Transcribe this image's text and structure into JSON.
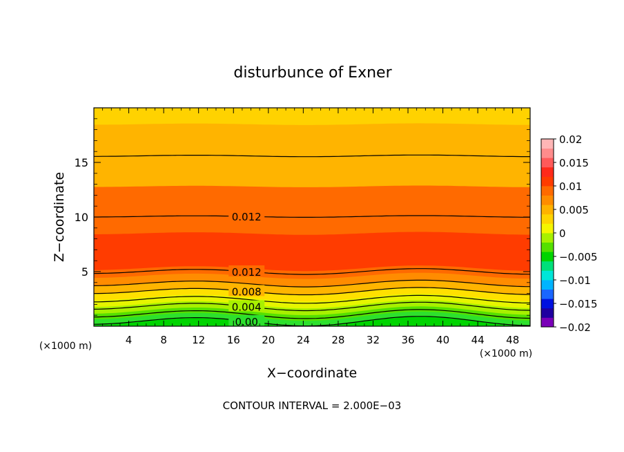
{
  "chart_data": {
    "type": "heatmap",
    "title": "disturbunce of Exner",
    "xlabel": "X−coordinate",
    "ylabel": "Z−coordinate",
    "x_unit": "(×1000 m)",
    "z_unit": "(×1000 m)",
    "xlim": [
      0,
      50
    ],
    "ylim": [
      0,
      20
    ],
    "xticks": [
      "4",
      "8",
      "12",
      "16",
      "20",
      "24",
      "28",
      "32",
      "36",
      "40",
      "44",
      "48"
    ],
    "yticks": [
      "5",
      "10",
      "15"
    ],
    "footer": "CONTOUR INTERVAL = 2.000E−03",
    "colorbar": {
      "range": [
        -0.02,
        0.02
      ],
      "tick_labels": [
        "0.02",
        "0.015",
        "0.01",
        "0.005",
        "0",
        "−0.005",
        "−0.01",
        "−0.015",
        "−0.02"
      ],
      "colors": [
        "#7a00b8",
        "#1f00a0",
        "#0011e0",
        "#1a66ff",
        "#00b4ff",
        "#00e6d8",
        "#00e07a",
        "#00d400",
        "#55e000",
        "#a8f000",
        "#f5f500",
        "#ffd400",
        "#ffb200",
        "#ff8c00",
        "#ff6a00",
        "#ff3c00",
        "#ff2a1a",
        "#ff5a5a",
        "#ff8c8c",
        "#ffb6b6"
      ]
    },
    "filled_bands": [
      {
        "z_bottom": 0.0,
        "z_top": 0.4,
        "value": -0.001,
        "color": "#00d400"
      },
      {
        "z_bottom": 0.4,
        "z_top": 0.9,
        "value": 0.001,
        "color": "#2de02d"
      },
      {
        "z_bottom": 0.9,
        "z_top": 1.4,
        "value": 0.003,
        "color": "#55e000"
      },
      {
        "z_bottom": 1.4,
        "z_top": 2.0,
        "value": 0.005,
        "color": "#a8f000"
      },
      {
        "z_bottom": 2.0,
        "z_top": 2.6,
        "value": 0.007,
        "color": "#e6f500"
      },
      {
        "z_bottom": 2.6,
        "z_top": 3.2,
        "value": 0.008,
        "color": "#ffe000"
      },
      {
        "z_bottom": 3.2,
        "z_top": 3.9,
        "value": 0.009,
        "color": "#ffb400"
      },
      {
        "z_bottom": 3.9,
        "z_top": 4.6,
        "value": 0.011,
        "color": "#ff8c00"
      },
      {
        "z_bottom": 4.6,
        "z_top": 5.3,
        "value": 0.012,
        "color": "#ff6a00"
      },
      {
        "z_bottom": 5.3,
        "z_top": 8.5,
        "value": 0.014,
        "color": "#ff3c00"
      },
      {
        "z_bottom": 8.5,
        "z_top": 12.8,
        "value": 0.012,
        "color": "#ff6a00"
      },
      {
        "z_bottom": 12.8,
        "z_top": 18.5,
        "value": 0.01,
        "color": "#ffb400"
      },
      {
        "z_bottom": 18.5,
        "z_top": 20.0,
        "value": 0.008,
        "color": "#ffd200"
      }
    ],
    "contours": [
      {
        "level": "0.00",
        "z_base": 0.45,
        "label": "0.00",
        "label_x": 17.5
      },
      {
        "level": "0.002",
        "z_base": 1.1,
        "label": "",
        "label_x": 0
      },
      {
        "level": "0.004",
        "z_base": 1.8,
        "label": "0.004",
        "label_x": 17.5
      },
      {
        "level": "0.006",
        "z_base": 2.45,
        "label": "",
        "label_x": 0
      },
      {
        "level": "0.008",
        "z_base": 3.2,
        "label": "0.008",
        "label_x": 17.5
      },
      {
        "level": "0.010",
        "z_base": 3.9,
        "label": "",
        "label_x": 0
      },
      {
        "level": "0.012",
        "z_base": 5.0,
        "label": "0.012",
        "label_x": 17.5
      },
      {
        "level": "0.012",
        "z_base": 10.05,
        "label": "0.012",
        "label_x": 17.5
      },
      {
        "level": "0.010",
        "z_base": 15.6,
        "label": "",
        "label_x": 0
      }
    ]
  }
}
